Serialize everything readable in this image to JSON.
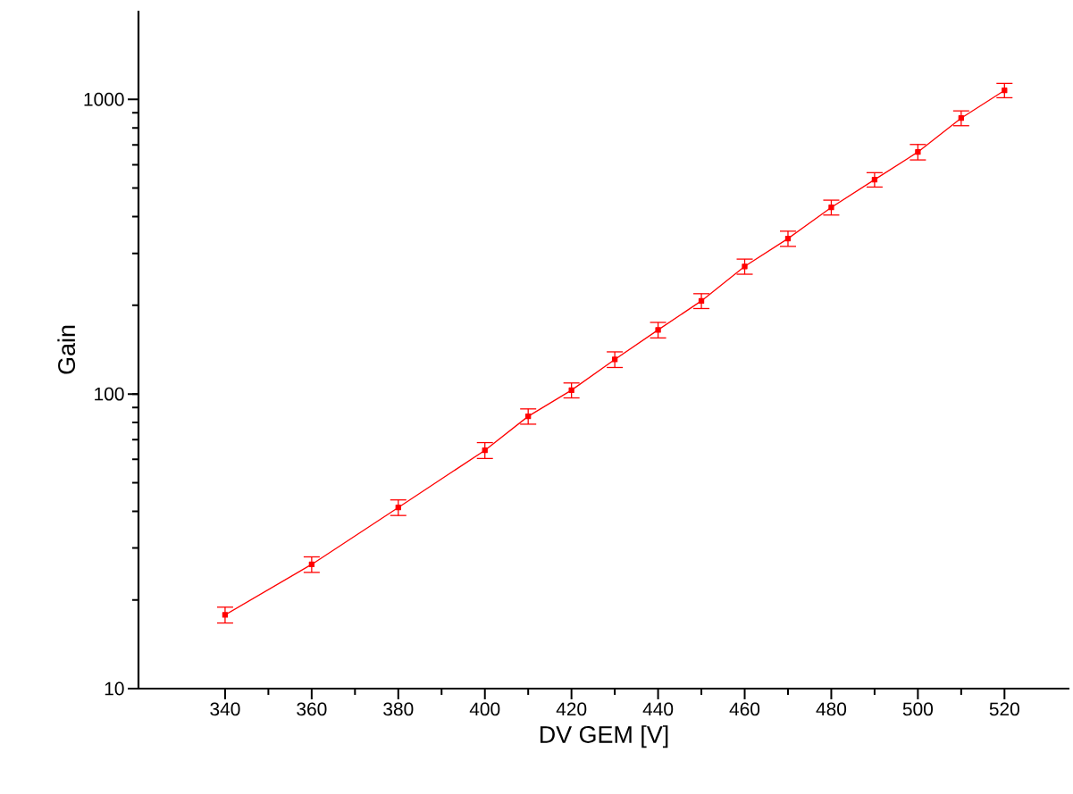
{
  "chart_data": {
    "type": "line",
    "xlabel": "DV GEM [V]",
    "ylabel": "Gain",
    "log": "y",
    "color": "#ff0000",
    "marker": "square",
    "line_style": "solid",
    "grid": false,
    "x": [
      340,
      360,
      380,
      400,
      410,
      420,
      430,
      440,
      450,
      460,
      470,
      480,
      490,
      500,
      510,
      520
    ],
    "values": [
      17.8,
      26.4,
      41.2,
      64.4,
      84,
      103,
      131,
      165,
      207,
      271,
      337,
      430,
      534,
      663,
      864,
      1073
    ],
    "errors": [
      1.1,
      1.6,
      2.5,
      4,
      5,
      6,
      8,
      10,
      12,
      16,
      20,
      25,
      30,
      40,
      50,
      60
    ],
    "xlim": [
      320,
      535
    ],
    "xticks": [
      340,
      360,
      380,
      400,
      420,
      440,
      460,
      480,
      500,
      520
    ],
    "ylim": [
      10,
      2000
    ],
    "yticks": [
      10,
      100,
      1000
    ]
  }
}
